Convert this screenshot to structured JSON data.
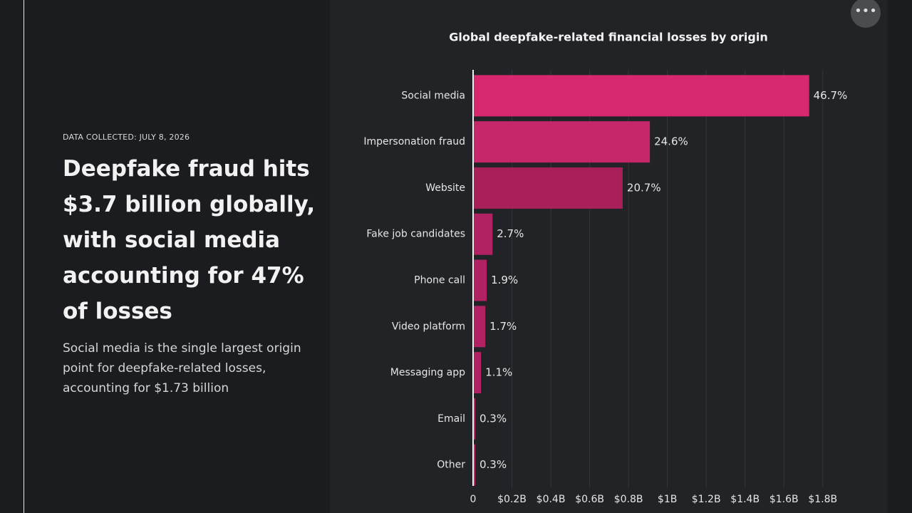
{
  "article": {
    "eyebrow": "DATA COLLECTED: JULY 8, 2026",
    "headline": "Deepfake fraud hits $3.7 billion globally, with social media accounting for 47% of losses",
    "summary": "Social media is the single largest origin point for deepfake-related losses, accounting for $1.73 billion"
  },
  "chart_data": {
    "type": "hbar",
    "title": "Global deepfake-related financial losses by origin",
    "categories": [
      "Social media",
      "Impersonation fraud",
      "Website",
      "Fake job candidates",
      "Phone call",
      "Video platform",
      "Messaging app",
      "Email",
      "Other"
    ],
    "values": [
      1.73,
      0.91,
      0.77,
      0.1,
      0.07,
      0.063,
      0.041,
      0.011,
      0.011
    ],
    "share_labels": [
      "46.7%",
      "24.6%",
      "20.7%",
      "2.7%",
      "1.9%",
      "1.7%",
      "1.1%",
      "0.3%",
      "0.3%"
    ],
    "colors": [
      "#d6286f",
      "#c6266a",
      "#a81f5a",
      "#b02261",
      "#b02261",
      "#b02261",
      "#b02261",
      "#c6266a",
      "#c6266a"
    ],
    "xlim": [
      0,
      1.9
    ],
    "xticks": [
      0,
      {
        "value": 0.2,
        "label": "$0.2B"
      },
      {
        "value": 0.4,
        "label": "$0.4B"
      },
      {
        "value": 0.6,
        "label": "$0.6B"
      },
      {
        "value": 0.8,
        "label": "$0.8B"
      },
      {
        "value": 1,
        "label": "$1B"
      },
      {
        "value": 1.2,
        "label": "$1.2B"
      },
      {
        "value": 1.4,
        "label": "$1.4B"
      },
      {
        "value": 1.6,
        "label": "$1.6B"
      },
      {
        "value": 1.8,
        "label": "$1.8B"
      }
    ],
    "grid": true
  }
}
